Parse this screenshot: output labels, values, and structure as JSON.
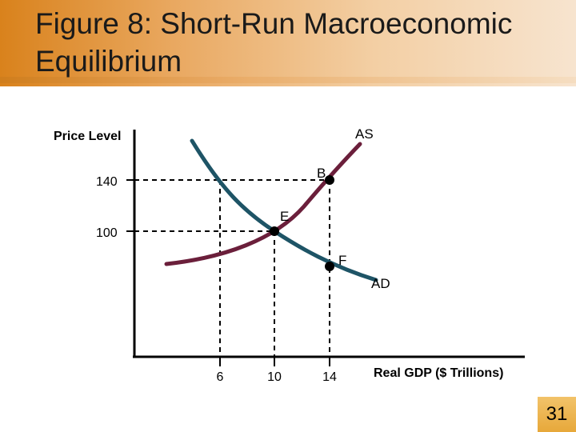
{
  "slide": {
    "title": "Figure 8:  Short-Run Macroeconomic Equilibrium",
    "page_number": "31"
  },
  "chart_data": {
    "type": "line",
    "ylabel": "Price Level",
    "xlabel": "Real GDP ($ Trillions)",
    "x_ticks": [
      6,
      10,
      14
    ],
    "y_ticks": [
      100,
      140
    ],
    "series": [
      {
        "name": "AS",
        "color": "#6b1f3b"
      },
      {
        "name": "AD",
        "color": "#1e5466"
      }
    ],
    "points": [
      {
        "label": "B",
        "x": 14,
        "y": 140
      },
      {
        "label": "E",
        "x": 10,
        "y": 100
      },
      {
        "label": "F",
        "x": 14,
        "y": 60
      }
    ]
  },
  "colors": {
    "title_band_start": "#d9821c",
    "title_band_end": "#f7e4cf",
    "as_curve": "#6b1f3b",
    "ad_curve": "#1e5466",
    "badge": "#e7a83a"
  }
}
